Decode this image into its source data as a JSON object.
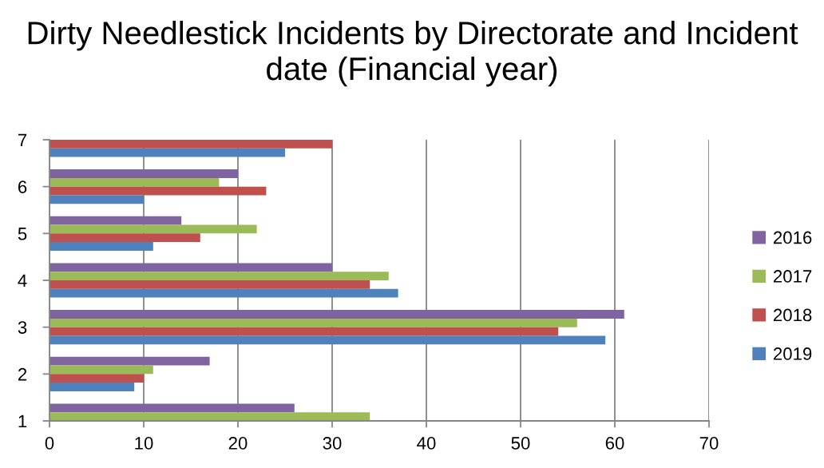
{
  "chart_data": {
    "type": "bar",
    "orientation": "horizontal",
    "title": "Dirty Needlestick Incidents by Directorate and Incident date (Financial year)",
    "categories": [
      "7",
      "6",
      "5",
      "4",
      "3",
      "2",
      "1"
    ],
    "series": [
      {
        "name": "2016",
        "color": "#8064a2",
        "values": [
          null,
          20,
          14,
          30,
          61,
          17,
          26
        ]
      },
      {
        "name": "2017",
        "color": "#9bbb59",
        "values": [
          null,
          18,
          22,
          36,
          56,
          11,
          34
        ]
      },
      {
        "name": "2018",
        "color": "#c0504d",
        "values": [
          30,
          23,
          16,
          34,
          54,
          10,
          null
        ]
      },
      {
        "name": "2019",
        "color": "#4f81bd",
        "values": [
          25,
          10,
          11,
          37,
          59,
          9,
          null
        ]
      }
    ],
    "xlim": [
      0,
      70
    ],
    "xticks": [
      0,
      10,
      20,
      30,
      40,
      50,
      60,
      70
    ],
    "grid": "x",
    "legend": "right"
  }
}
